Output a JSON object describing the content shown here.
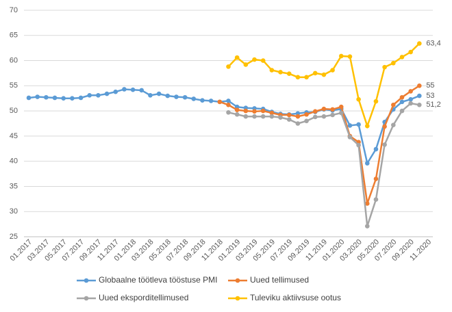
{
  "chart_data": {
    "type": "line",
    "categories": [
      "01.2017",
      null,
      "03.2017",
      null,
      "05.2017",
      null,
      "07.2017",
      null,
      "09.2017",
      null,
      "11.2017",
      null,
      "01.2018",
      null,
      "03.2018",
      null,
      "05.2018",
      null,
      "07.2018",
      null,
      "09.2018",
      null,
      "11.2018",
      null,
      "01.2019",
      null,
      "03.2019",
      null,
      "05.2019",
      null,
      "07.2019",
      null,
      "09.2019",
      null,
      "11.2019",
      null,
      "01.2020",
      null,
      "03.2020",
      null,
      "05.2020",
      null,
      "07.2020",
      null,
      "09.2020",
      null,
      "11.2020"
    ],
    "series": [
      {
        "name": "Globaalne töötleva tööstuse PMI",
        "color": "#5b9bd5",
        "values": [
          52.6,
          52.8,
          52.7,
          52.6,
          52.5,
          52.5,
          52.6,
          53.1,
          53.1,
          53.4,
          53.8,
          54.3,
          54.2,
          54.1,
          53.1,
          53.4,
          53.0,
          52.8,
          52.7,
          52.4,
          52.1,
          52.0,
          51.8,
          52.0,
          50.8,
          50.6,
          50.5,
          50.4,
          49.8,
          49.4,
          49.3,
          49.5,
          49.7,
          49.8,
          50.3,
          50.1,
          50.4,
          47.1,
          47.3,
          39.6,
          42.4,
          47.8,
          50.3,
          51.8,
          52.3,
          53.0,
          null
        ],
        "value_labels": [
          null,
          null,
          null,
          null,
          null,
          null,
          null,
          null,
          null,
          null,
          null,
          null,
          null,
          null,
          null,
          null,
          null,
          null,
          null,
          null,
          null,
          null,
          null,
          null,
          null,
          null,
          null,
          null,
          null,
          null,
          null,
          null,
          null,
          null,
          null,
          null,
          null,
          null,
          null,
          null,
          null,
          null,
          null,
          null,
          null,
          "53",
          null
        ]
      },
      {
        "name": "Uued tellimused",
        "color": "#ed7d31",
        "values": [
          null,
          null,
          null,
          null,
          null,
          null,
          null,
          null,
          null,
          null,
          null,
          null,
          null,
          null,
          null,
          null,
          null,
          null,
          null,
          null,
          null,
          null,
          51.8,
          51.2,
          50.2,
          50.0,
          49.9,
          50.0,
          49.6,
          49.2,
          49.2,
          48.9,
          49.3,
          49.9,
          50.4,
          50.3,
          50.8,
          45.0,
          43.8,
          31.6,
          36.5,
          46.9,
          51.2,
          52.7,
          53.9,
          55.0,
          null
        ],
        "value_labels": [
          null,
          null,
          null,
          null,
          null,
          null,
          null,
          null,
          null,
          null,
          null,
          null,
          null,
          null,
          null,
          null,
          null,
          null,
          null,
          null,
          null,
          null,
          null,
          null,
          null,
          null,
          null,
          null,
          null,
          null,
          null,
          null,
          null,
          null,
          null,
          null,
          null,
          null,
          null,
          null,
          null,
          null,
          null,
          null,
          null,
          "55",
          null
        ]
      },
      {
        "name": "Uued eksporditellimused",
        "color": "#a5a5a5",
        "values": [
          null,
          null,
          null,
          null,
          null,
          null,
          null,
          null,
          null,
          null,
          null,
          null,
          null,
          null,
          null,
          null,
          null,
          null,
          null,
          null,
          null,
          null,
          null,
          49.7,
          49.3,
          48.9,
          48.9,
          48.9,
          48.9,
          48.7,
          48.3,
          47.5,
          48.0,
          48.8,
          48.9,
          49.2,
          49.6,
          44.8,
          43.2,
          27.1,
          32.4,
          43.3,
          47.2,
          50.0,
          51.5,
          51.2,
          null
        ],
        "value_labels": [
          null,
          null,
          null,
          null,
          null,
          null,
          null,
          null,
          null,
          null,
          null,
          null,
          null,
          null,
          null,
          null,
          null,
          null,
          null,
          null,
          null,
          null,
          null,
          null,
          null,
          null,
          null,
          null,
          null,
          null,
          null,
          null,
          null,
          null,
          null,
          null,
          null,
          null,
          null,
          null,
          null,
          null,
          null,
          null,
          null,
          "51,2",
          null
        ]
      },
      {
        "name": "Tuleviku aktiivsuse ootus",
        "color": "#ffc000",
        "values": [
          null,
          null,
          null,
          null,
          null,
          null,
          null,
          null,
          null,
          null,
          null,
          null,
          null,
          null,
          null,
          null,
          null,
          null,
          null,
          null,
          null,
          null,
          null,
          58.8,
          60.6,
          59.2,
          60.2,
          60.0,
          58.1,
          57.7,
          57.4,
          56.7,
          56.7,
          57.5,
          57.2,
          58.1,
          60.9,
          60.8,
          52.3,
          47.0,
          51.9,
          58.7,
          59.5,
          60.7,
          61.7,
          63.4,
          null
        ],
        "value_labels": [
          null,
          null,
          null,
          null,
          null,
          null,
          null,
          null,
          null,
          null,
          null,
          null,
          null,
          null,
          null,
          null,
          null,
          null,
          null,
          null,
          null,
          null,
          null,
          null,
          null,
          null,
          null,
          null,
          null,
          null,
          null,
          null,
          null,
          null,
          null,
          null,
          null,
          null,
          null,
          null,
          null,
          null,
          null,
          null,
          null,
          "63,4",
          null
        ]
      }
    ],
    "ylim": [
      25,
      70
    ],
    "yticks": [
      25,
      30,
      35,
      40,
      45,
      50,
      55,
      60,
      65,
      70
    ],
    "grid": true,
    "legend": "bottom"
  }
}
